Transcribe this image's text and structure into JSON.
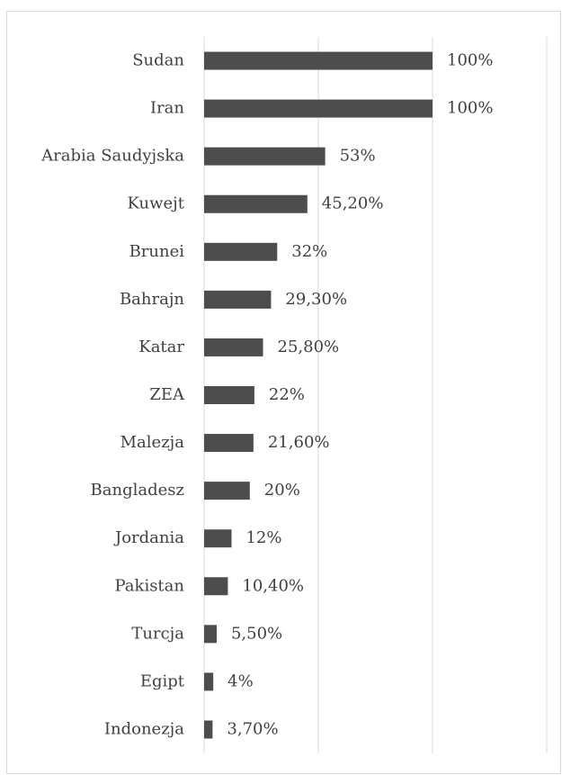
{
  "chart_data": {
    "type": "bar",
    "orientation": "horizontal",
    "categories": [
      "Sudan",
      "Iran",
      "Arabia Saudyjska",
      "Kuwejt",
      "Brunei",
      "Bahrajn",
      "Katar",
      "ZEA",
      "Malezja",
      "Bangladesz",
      "Jordania",
      "Pakistan",
      "Turcja",
      "Egipt",
      "Indonezja"
    ],
    "values": [
      100,
      100,
      53,
      45.2,
      32,
      29.3,
      25.8,
      22,
      21.6,
      20,
      12,
      10.4,
      5.5,
      4,
      3.7
    ],
    "value_labels": [
      "100%",
      "100%",
      "53%",
      "45,20%",
      "32%",
      "29,30%",
      "25,80%",
      "22%",
      "21,60%",
      "20%",
      "12%",
      "10,40%",
      "5,50%",
      "4%",
      "3,70%"
    ],
    "color": "#4d4d4d",
    "xlim": [
      0,
      150
    ],
    "xticks": [
      0,
      50,
      100,
      150
    ],
    "grid": true
  }
}
